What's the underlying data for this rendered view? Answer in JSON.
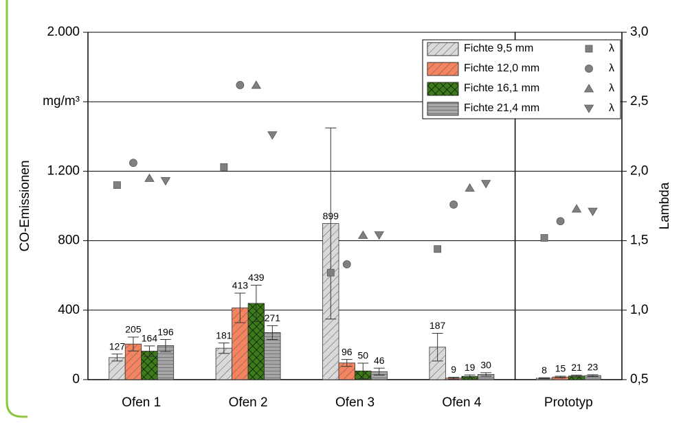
{
  "chart_data": {
    "type": "bar",
    "ylabel": "CO-Emissionen",
    "y_unit": "mg/m³",
    "y2label": "Lambda",
    "categories": [
      "Ofen 1",
      "Ofen 2",
      "Ofen 3",
      "Ofen 4",
      "Prototyp"
    ],
    "ylim": [
      0,
      2000
    ],
    "yticks": [
      0,
      400,
      800,
      {
        "value": 1200,
        "label": "1.200"
      },
      {
        "value": 1600,
        "label": null
      },
      {
        "value": 2000,
        "label": "2.000"
      }
    ],
    "y2lim": [
      0.5,
      3.0
    ],
    "y2ticks": [
      {
        "value": 0.5,
        "label": "0,5"
      },
      {
        "value": 1.0,
        "label": "1,0"
      },
      {
        "value": 1.5,
        "label": "1,5"
      },
      {
        "value": 2.0,
        "label": "2,0"
      },
      {
        "value": 2.5,
        "label": "2,5"
      },
      {
        "value": 3.0,
        "label": "3,0"
      }
    ],
    "grid": true,
    "legend": "upper right",
    "series": [
      {
        "name": "Fichte 9,5 mm",
        "type": "bar",
        "color": "#d9d9d9",
        "hatch": "diagonal",
        "values": [
          127,
          181,
          899,
          187,
          8
        ],
        "errors": [
          20,
          30,
          550,
          80,
          3
        ]
      },
      {
        "name": "Fichte 12,0 mm",
        "type": "bar",
        "color": "#f4845f",
        "hatch": "diagonal",
        "values": [
          205,
          413,
          96,
          9,
          15
        ],
        "errors": [
          40,
          85,
          20,
          5,
          5
        ]
      },
      {
        "name": "Fichte 16,1 mm",
        "type": "bar",
        "color": "#3d7a1a",
        "hatch": "cross",
        "values": [
          164,
          439,
          50,
          19,
          21
        ],
        "errors": [
          30,
          105,
          45,
          8,
          5
        ]
      },
      {
        "name": "Fichte 21,4 mm",
        "type": "bar",
        "color": "#a6a6a6",
        "hatch": "horizontal",
        "values": [
          196,
          271,
          46,
          30,
          23
        ],
        "errors": [
          35,
          40,
          20,
          10,
          5
        ]
      },
      {
        "name": "λ",
        "type": "scatter",
        "axis": "y2",
        "marker": "square",
        "color": "#808080",
        "values": [
          1.9,
          2.03,
          1.27,
          1.44,
          1.52
        ]
      },
      {
        "name": "λ",
        "type": "scatter",
        "axis": "y2",
        "marker": "circle",
        "color": "#808080",
        "values": [
          2.06,
          2.62,
          1.33,
          1.76,
          1.64
        ]
      },
      {
        "name": "λ",
        "type": "scatter",
        "axis": "y2",
        "marker": "triangle-up",
        "color": "#808080",
        "values": [
          1.95,
          2.62,
          1.54,
          1.88,
          1.73
        ]
      },
      {
        "name": "λ",
        "type": "scatter",
        "axis": "y2",
        "marker": "triangle-down",
        "color": "#808080",
        "values": [
          1.93,
          2.26,
          1.54,
          1.91,
          1.71
        ]
      }
    ]
  }
}
